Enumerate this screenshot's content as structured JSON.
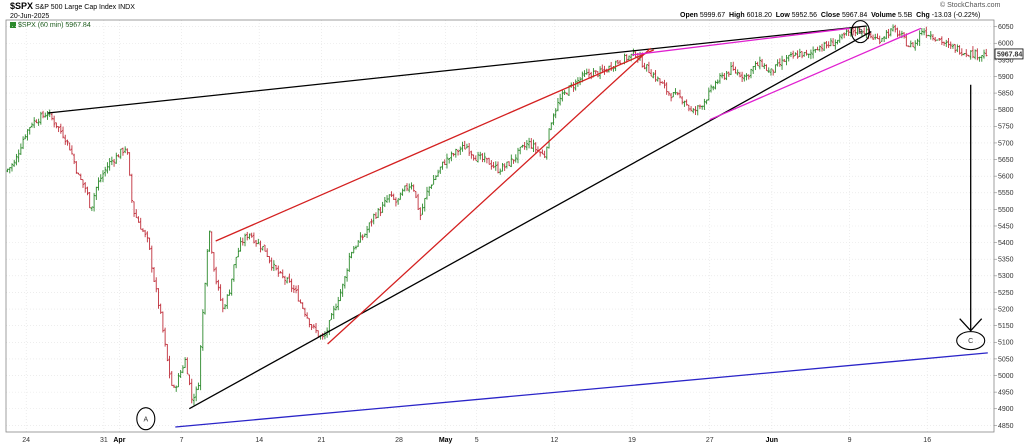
{
  "header": {
    "symbol": "$SPX",
    "name": "S&P 500 Large Cap Index",
    "exchange": "INDX",
    "date": "20-Jun-2025",
    "legend": "$SPX (60 min) 5967.84",
    "open_label": "Open",
    "open_value": "5999.67",
    "high_label": "High",
    "high_value": "6018.20",
    "low_label": "Low",
    "low_value": "5952.56",
    "close_label": "Close",
    "close_value": "5967.84",
    "volume_label": "Volume",
    "volume_value": "5.5B",
    "chg_label": "Chg",
    "chg_value": "-13.03 (-0.22%)",
    "brand": "© StockCharts.com"
  },
  "chart_data": {
    "type": "candlestick",
    "interval": "60 min",
    "ylim": [
      4830,
      6070
    ],
    "y_ticks": [
      4850,
      4900,
      4950,
      5000,
      5050,
      5100,
      5150,
      5200,
      5250,
      5300,
      5350,
      5400,
      5450,
      5500,
      5550,
      5600,
      5650,
      5700,
      5750,
      5800,
      5850,
      5900,
      5950,
      6000,
      6050
    ],
    "last_price": 5967.84,
    "x_labels": [
      {
        "label": "24",
        "day": 0
      },
      {
        "label": "31",
        "day": 5
      },
      {
        "label": "Apr",
        "day": 6,
        "bold": true
      },
      {
        "label": "7",
        "day": 10
      },
      {
        "label": "14",
        "day": 15
      },
      {
        "label": "21",
        "day": 19
      },
      {
        "label": "28",
        "day": 24
      },
      {
        "label": "May",
        "day": 27,
        "bold": true
      },
      {
        "label": "5",
        "day": 29
      },
      {
        "label": "12",
        "day": 34
      },
      {
        "label": "19",
        "day": 39
      },
      {
        "label": "27",
        "day": 44
      },
      {
        "label": "Jun",
        "day": 48,
        "bold": true
      },
      {
        "label": "9",
        "day": 53
      },
      {
        "label": "16",
        "day": 58
      }
    ],
    "x_range": [
      -1.3,
      62.3
    ],
    "price_path": [
      [
        -1.2,
        5615
      ],
      [
        -0.6,
        5640
      ],
      [
        0,
        5720
      ],
      [
        0.5,
        5760
      ],
      [
        1,
        5775
      ],
      [
        1.5,
        5790
      ],
      [
        2,
        5760
      ],
      [
        2.6,
        5720
      ],
      [
        3,
        5680
      ],
      [
        3.5,
        5600
      ],
      [
        4,
        5560
      ],
      [
        4.3,
        5500
      ],
      [
        4.6,
        5560
      ],
      [
        5,
        5600
      ],
      [
        5.5,
        5640
      ],
      [
        6,
        5660
      ],
      [
        6.6,
        5690
      ],
      [
        7,
        5500
      ],
      [
        7.5,
        5450
      ],
      [
        8,
        5400
      ],
      [
        8.4,
        5280
      ],
      [
        8.8,
        5180
      ],
      [
        9.2,
        5050
      ],
      [
        9.6,
        4950
      ],
      [
        10,
        5000
      ],
      [
        10.4,
        5050
      ],
      [
        10.8,
        4930
      ],
      [
        11.2,
        4960
      ],
      [
        11.6,
        5250
      ],
      [
        11.9,
        5450
      ],
      [
        12.3,
        5300
      ],
      [
        12.8,
        5200
      ],
      [
        13.2,
        5250
      ],
      [
        13.6,
        5350
      ],
      [
        14,
        5400
      ],
      [
        14.5,
        5430
      ],
      [
        15,
        5400
      ],
      [
        15.5,
        5380
      ],
      [
        16,
        5330
      ],
      [
        16.5,
        5300
      ],
      [
        17,
        5280
      ],
      [
        17.5,
        5250
      ],
      [
        18,
        5200
      ],
      [
        18.5,
        5150
      ],
      [
        19,
        5120
      ],
      [
        19.3,
        5110
      ],
      [
        19.7,
        5160
      ],
      [
        20.2,
        5230
      ],
      [
        20.6,
        5280
      ],
      [
        21,
        5370
      ],
      [
        21.5,
        5400
      ],
      [
        22,
        5430
      ],
      [
        22.5,
        5480
      ],
      [
        23,
        5500
      ],
      [
        23.5,
        5540
      ],
      [
        24,
        5520
      ],
      [
        24.5,
        5560
      ],
      [
        25,
        5580
      ],
      [
        25.5,
        5480
      ],
      [
        26,
        5560
      ],
      [
        26.5,
        5600
      ],
      [
        27,
        5640
      ],
      [
        27.5,
        5660
      ],
      [
        28,
        5680
      ],
      [
        28.5,
        5690
      ],
      [
        29,
        5660
      ],
      [
        29.5,
        5650
      ],
      [
        30,
        5640
      ],
      [
        30.5,
        5620
      ],
      [
        31,
        5630
      ],
      [
        31.5,
        5650
      ],
      [
        32,
        5680
      ],
      [
        32.5,
        5700
      ],
      [
        33,
        5680
      ],
      [
        33.5,
        5660
      ],
      [
        34,
        5780
      ],
      [
        34.5,
        5830
      ],
      [
        35,
        5860
      ],
      [
        35.5,
        5880
      ],
      [
        36,
        5900
      ],
      [
        36.5,
        5910
      ],
      [
        37,
        5910
      ],
      [
        37.5,
        5920
      ],
      [
        38,
        5940
      ],
      [
        38.5,
        5950
      ],
      [
        39,
        5960
      ],
      [
        39.4,
        5970
      ],
      [
        39.8,
        5940
      ],
      [
        40.2,
        5920
      ],
      [
        40.6,
        5900
      ],
      [
        41,
        5880
      ],
      [
        41.5,
        5850
      ],
      [
        42,
        5840
      ],
      [
        42.5,
        5830
      ],
      [
        43,
        5790
      ],
      [
        43.5,
        5810
      ],
      [
        44,
        5840
      ],
      [
        44.5,
        5880
      ],
      [
        45,
        5900
      ],
      [
        45.5,
        5920
      ],
      [
        46,
        5910
      ],
      [
        46.5,
        5900
      ],
      [
        47,
        5930
      ],
      [
        47.5,
        5940
      ],
      [
        48,
        5910
      ],
      [
        48.5,
        5930
      ],
      [
        49,
        5950
      ],
      [
        49.5,
        5960
      ],
      [
        50,
        5970
      ],
      [
        50.5,
        5960
      ],
      [
        51,
        5990
      ],
      [
        51.5,
        5990
      ],
      [
        52,
        6000
      ],
      [
        52.5,
        6010
      ],
      [
        53,
        6030
      ],
      [
        53.5,
        6040
      ],
      [
        54,
        6040
      ],
      [
        54.5,
        6020
      ],
      [
        55,
        6010
      ],
      [
        55.5,
        6030
      ],
      [
        56,
        6040
      ],
      [
        56.5,
        6020
      ],
      [
        57,
        5990
      ],
      [
        57.4,
        6000
      ],
      [
        57.8,
        6040
      ],
      [
        58.2,
        6030
      ],
      [
        58.6,
        6020
      ],
      [
        59,
        6010
      ],
      [
        59.5,
        5990
      ],
      [
        60,
        5985
      ],
      [
        60.5,
        5975
      ],
      [
        61,
        5970
      ],
      [
        61.5,
        5965
      ],
      [
        61.9,
        5968
      ]
    ],
    "annotations": {
      "labels": [
        {
          "text": "A",
          "day": 7.7,
          "price": 4870
        },
        {
          "text": "B",
          "day": 53.7,
          "price": 6035
        },
        {
          "text": "C",
          "day": 60.8,
          "price": 5105
        }
      ],
      "lines": [
        {
          "color": "#000000",
          "points": [
            [
              1.4,
              5790
            ],
            [
              54.1,
              6052
            ]
          ]
        },
        {
          "color": "#000000",
          "points": [
            [
              10.5,
              4900
            ],
            [
              54.4,
              6035
            ]
          ]
        },
        {
          "color": "#d42020",
          "points": [
            [
              12.2,
              5405
            ],
            [
              40.4,
              5980
            ]
          ]
        },
        {
          "color": "#d42020",
          "points": [
            [
              19.4,
              5095
            ],
            [
              40.2,
              5985
            ]
          ]
        },
        {
          "color": "#e020d0",
          "points": [
            [
              39,
              5965
            ],
            [
              53,
              6045
            ]
          ]
        },
        {
          "color": "#e020d0",
          "points": [
            [
              44,
              5770
            ],
            [
              57.6,
              6045
            ]
          ]
        },
        {
          "color": "#2a24c8",
          "points": [
            [
              9.6,
              4845
            ],
            [
              61.9,
              5068
            ]
          ]
        }
      ],
      "arrow": {
        "color": "#000000",
        "day": 60.8,
        "from_price": 5875,
        "to_price": 5135
      }
    }
  },
  "colors": {
    "up": "#2c8a2c",
    "down": "#c0303c",
    "black_line": "#000000",
    "red_line": "#d42020",
    "magenta_line": "#e020d0",
    "blue_line": "#2a24c8",
    "grid": "#e2e2e2"
  }
}
